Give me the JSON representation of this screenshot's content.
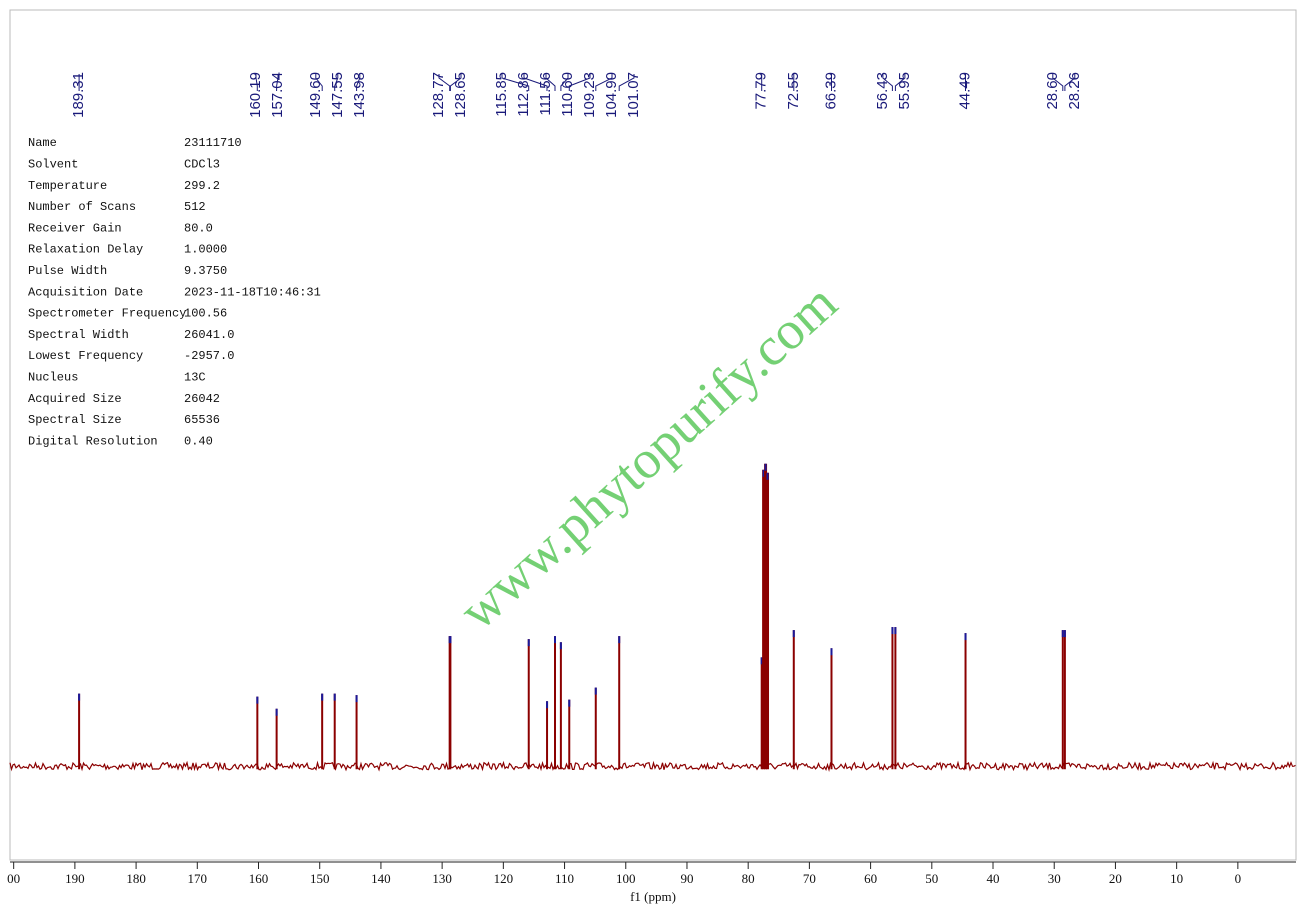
{
  "chart_data": {
    "type": "nmr",
    "x_label": "f1 (ppm)",
    "watermark": "www.phytopurify.com",
    "xlim": [
      200.6,
      -9.5
    ],
    "ylim": [
      -31,
      250
    ],
    "xticks": [
      {
        "value": 200,
        "label": "00"
      },
      190,
      180,
      170,
      160,
      150,
      140,
      130,
      120,
      110,
      100,
      90,
      80,
      70,
      60,
      50,
      40,
      30,
      20,
      10,
      0
    ],
    "series": [
      {
        "color": "#8b0000",
        "x": [
          189.31,
          160.19,
          157.04,
          149.6,
          147.55,
          143.98,
          128.77,
          128.65,
          115.85,
          112.86,
          111.56,
          110.6,
          109.23,
          104.9,
          101.07,
          77.79,
          77.48,
          77.16,
          76.84,
          72.55,
          66.39,
          56.43,
          55.95,
          44.49,
          28.6,
          28.26
        ],
        "values": [
          24,
          23,
          19,
          24,
          24,
          23.5,
          43,
          43,
          42,
          21.5,
          43,
          41,
          22,
          26,
          43,
          36,
          98,
          100,
          97,
          45,
          39,
          46,
          46,
          44,
          45,
          45
        ],
        "peak_labels": [
          "189.31",
          "160.19",
          "157.04",
          "149.60",
          "147.55",
          "143.98",
          "128.77",
          "128.65",
          "115.85",
          "112.86",
          "111.56",
          "110.60",
          "109.23",
          "104.90",
          "101.07",
          "77.79",
          null,
          null,
          null,
          "72.55",
          "66.39",
          "56.43",
          "55.95",
          "44.49",
          "28.60",
          "28.26"
        ]
      }
    ],
    "parameters": [
      [
        "Name",
        "23111710"
      ],
      [
        "Solvent",
        "CDCl3"
      ],
      [
        "Temperature",
        "299.2"
      ],
      [
        "Number of Scans",
        "512"
      ],
      [
        "Receiver Gain",
        "80.0"
      ],
      [
        "Relaxation Delay",
        "1.0000"
      ],
      [
        "Pulse Width",
        "9.3750"
      ],
      [
        "Acquisition Date",
        "2023-11-18T10:46:31"
      ],
      [
        "Spectrometer Frequency",
        "100.56"
      ],
      [
        "Spectral Width",
        "26041.0"
      ],
      [
        "Lowest Frequency",
        "-2957.0"
      ],
      [
        "Nucleus",
        "13C"
      ],
      [
        "Acquired Size",
        "26042"
      ],
      [
        "Spectral Size",
        "65536"
      ],
      [
        "Digital Resolution",
        "0.40"
      ]
    ]
  }
}
